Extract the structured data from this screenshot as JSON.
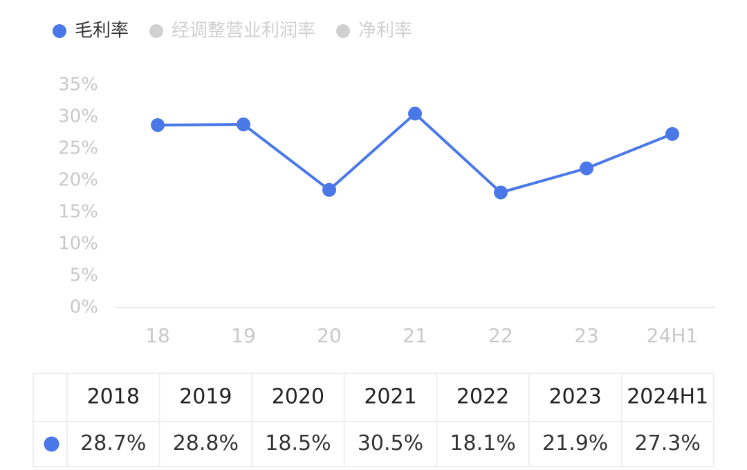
{
  "chart_data": {
    "type": "line",
    "categories": [
      "18",
      "19",
      "20",
      "21",
      "22",
      "23",
      "24H1"
    ],
    "series": [
      {
        "name": "毛利率",
        "color": "#4a78e8",
        "values": [
          28.7,
          28.8,
          18.5,
          30.5,
          18.1,
          21.9,
          27.3
        ],
        "value_labels": [
          "28.7%",
          "28.8%",
          "18.5%",
          "30.5%",
          "18.1%",
          "21.9%",
          "27.3%"
        ]
      },
      {
        "name": "经调整营业利润率",
        "color": "#d0d0d0",
        "hidden": true,
        "values": [
          null,
          null,
          null,
          null,
          null,
          null,
          null
        ]
      },
      {
        "name": "净利率",
        "color": "#d0d0d0",
        "hidden": true,
        "values": [
          null,
          null,
          null,
          null,
          null,
          null,
          null
        ]
      }
    ],
    "ylim": [
      0,
      35
    ],
    "yticks": [
      {
        "value": 0,
        "label": "0%"
      },
      {
        "value": 5,
        "label": "5%"
      },
      {
        "value": 10,
        "label": "10%"
      },
      {
        "value": 15,
        "label": "15%"
      },
      {
        "value": 20,
        "label": "20%"
      },
      {
        "value": 25,
        "label": "25%"
      },
      {
        "value": 30,
        "label": "30%"
      },
      {
        "value": 35,
        "label": "35%"
      }
    ],
    "grid": false,
    "table_columns": [
      "2018",
      "2019",
      "2020",
      "2021",
      "2022",
      "2023",
      "2024H1"
    ]
  }
}
